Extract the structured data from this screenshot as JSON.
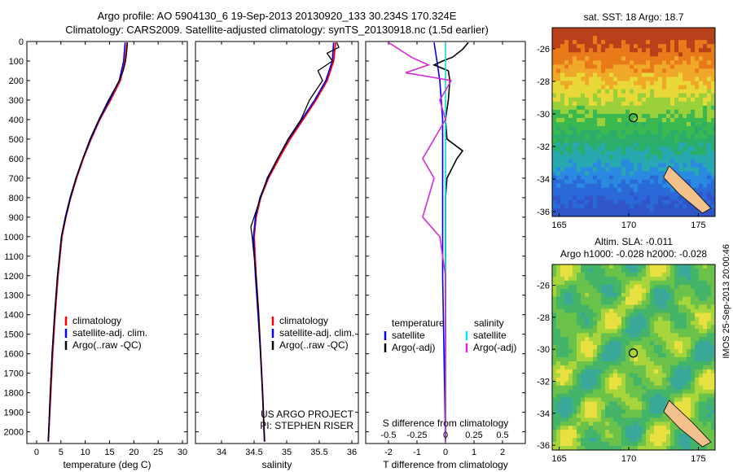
{
  "header": {
    "line1": "Argo profile: AO 5904130_6 19-Sep-2013 20130920_133 30.234S 170.324E",
    "line2": "Climatology: CARS2009. Satellite-adjusted climatology: synTS_20130918.nc (1.5d earlier)"
  },
  "colors": {
    "climatology": "#ff0000",
    "satellite": "#0000ff",
    "argo": "#000000",
    "salinity_sat": "#00e5ff",
    "salinity_argo": "#d42ad4"
  },
  "chart_data": [
    {
      "type": "line",
      "panel": "temperature",
      "xlabel": "temperature (deg C)",
      "xlim": [
        -2,
        31
      ],
      "xticks": [
        0,
        5,
        10,
        15,
        20,
        25,
        30
      ],
      "ylim": [
        2060,
        0
      ],
      "yticks": [
        0,
        100,
        200,
        300,
        400,
        500,
        600,
        700,
        800,
        900,
        1000,
        1100,
        1200,
        1300,
        1400,
        1500,
        1600,
        1700,
        1800,
        1900,
        2000
      ],
      "legend": [
        "climatology",
        "satellite-adj. clim.",
        "Argo(..raw -QC)"
      ],
      "series": [
        {
          "name": "climatology",
          "depth": [
            5,
            100,
            200,
            300,
            400,
            500,
            600,
            700,
            800,
            900,
            1000,
            1200,
            1400,
            1600,
            1800,
            2050
          ],
          "values": [
            18.6,
            18.2,
            17.2,
            15.2,
            13.0,
            11.2,
            9.6,
            8.2,
            7.0,
            6.0,
            5.2,
            4.4,
            3.8,
            3.3,
            2.9,
            2.4
          ]
        },
        {
          "name": "satellite-adj. clim.",
          "depth": [
            5,
            100,
            200,
            300,
            400,
            500,
            600,
            700,
            800,
            900,
            1000,
            1200,
            1400,
            1600,
            1800,
            2050
          ],
          "values": [
            18.2,
            17.9,
            17.0,
            15.0,
            12.9,
            11.1,
            9.5,
            8.1,
            6.9,
            5.9,
            5.1,
            4.3,
            3.7,
            3.2,
            2.8,
            2.4
          ]
        },
        {
          "name": "Argo(..raw -QC)",
          "depth": [
            5,
            60,
            100,
            150,
            200,
            300,
            400,
            500,
            600,
            700,
            800,
            900,
            1000,
            1200,
            1400,
            1600,
            1800,
            2050
          ],
          "values": [
            18.7,
            18.5,
            18.3,
            17.8,
            17.0,
            14.8,
            12.8,
            11.0,
            9.5,
            8.1,
            7.0,
            6.0,
            5.1,
            4.3,
            3.7,
            3.2,
            2.8,
            2.4
          ]
        }
      ]
    },
    {
      "type": "line",
      "panel": "salinity",
      "xlabel": "salinity",
      "xlim": [
        33.6,
        36.1
      ],
      "xticks": [
        34,
        34.5,
        35,
        35.5,
        36
      ],
      "ylim": [
        2060,
        0
      ],
      "legend": [
        "climatology",
        "satellite-adj. clim.",
        "Argo(..raw -QC)"
      ],
      "annotation": [
        "US ARGO PROJECT",
        "PI: STEPHEN RISER"
      ],
      "series": [
        {
          "name": "climatology",
          "depth": [
            5,
            100,
            200,
            300,
            400,
            500,
            600,
            700,
            800,
            900,
            1000,
            1200,
            1400,
            1600,
            1800,
            2050
          ],
          "values": [
            35.75,
            35.72,
            35.62,
            35.45,
            35.25,
            35.05,
            34.88,
            34.72,
            34.6,
            34.53,
            34.5,
            34.53,
            34.57,
            34.6,
            34.63,
            34.66
          ]
        },
        {
          "name": "satellite-adj. clim.",
          "depth": [
            5,
            100,
            200,
            300,
            400,
            500,
            600,
            700,
            800,
            900,
            1000,
            1200,
            1400,
            1600,
            1800,
            2050
          ],
          "values": [
            35.72,
            35.7,
            35.6,
            35.43,
            35.23,
            35.03,
            34.86,
            34.71,
            34.59,
            34.52,
            34.49,
            34.52,
            34.56,
            34.6,
            34.63,
            34.66
          ]
        },
        {
          "name": "Argo(..raw -QC)",
          "depth": [
            5,
            30,
            60,
            100,
            150,
            200,
            300,
            400,
            500,
            600,
            700,
            800,
            900,
            950,
            1000,
            1100,
            1200,
            1400,
            1600,
            1800,
            2050
          ],
          "values": [
            35.77,
            35.8,
            35.62,
            35.7,
            35.48,
            35.55,
            35.35,
            35.22,
            35.02,
            34.86,
            34.7,
            34.6,
            34.5,
            34.45,
            34.47,
            34.5,
            34.53,
            34.57,
            34.6,
            34.63,
            34.66
          ]
        }
      ]
    },
    {
      "type": "line",
      "panel": "difference",
      "xlabel": "T difference from climatology",
      "xlabel_top": "S difference from climatology",
      "xlim": [
        -2.8,
        2.8
      ],
      "xticks": [
        -2,
        -1,
        0,
        1,
        2
      ],
      "sticks": [
        "-0.5",
        "-0.25",
        "0",
        "0.25",
        "0.5"
      ],
      "ylim": [
        2060,
        0
      ],
      "legend_title_t": "temperature",
      "legend_title_s": "salinity",
      "legend": [
        "satellite",
        "Argo(-adj)",
        "satellite",
        "Argo(-adj)"
      ],
      "series": [
        {
          "name": "temperature satellite",
          "depth": [
            5,
            100,
            200,
            400,
            600,
            800,
            1000,
            1200,
            2050
          ],
          "values": [
            -0.4,
            -0.3,
            -0.2,
            -0.1,
            -0.1,
            -0.1,
            -0.1,
            -0.1,
            0.0
          ]
        },
        {
          "name": "temperature Argo(-adj)",
          "depth": [
            5,
            40,
            80,
            100,
            120,
            150,
            200,
            300,
            400,
            500,
            560,
            600,
            700,
            800,
            1000,
            1200,
            2050
          ],
          "values": [
            0.8,
            0.6,
            0.25,
            -0.1,
            -0.4,
            0.1,
            0.15,
            0.1,
            0.0,
            0.05,
            0.6,
            0.4,
            0.05,
            0.0,
            0.0,
            0.0,
            0.0
          ]
        },
        {
          "name": "salinity satellite",
          "depth": [
            5,
            100,
            300,
            600,
            900,
            1200,
            2050
          ],
          "values": [
            0.0,
            0.0,
            0.0,
            0.0,
            0.0,
            0.0,
            0.0
          ]
        },
        {
          "name": "salinity Argo(-adj)",
          "depth": [
            5,
            80,
            120,
            160,
            200,
            300,
            400,
            600,
            700,
            800,
            900,
            1000,
            1200,
            2050
          ],
          "values": [
            -0.5,
            -0.3,
            -0.15,
            -0.35,
            0.05,
            -0.05,
            0.0,
            -0.2,
            -0.1,
            -0.15,
            -0.2,
            -0.05,
            0.0,
            0.0
          ]
        }
      ]
    },
    {
      "type": "heatmap",
      "panel": "sst_map",
      "title": "sat. SST: 18 Argo: 18.7",
      "xticks": [
        165,
        170,
        175
      ],
      "yticks": [
        -26,
        -28,
        -30,
        -32,
        -34,
        -36
      ],
      "xlim": [
        164.5,
        176.2
      ],
      "ylim": [
        -36.3,
        -24.7
      ],
      "marker": {
        "lon": 170.324,
        "lat": -30.234
      }
    },
    {
      "type": "heatmap",
      "panel": "sla_map",
      "title": "Altim. SLA: -0.011",
      "subtitle": "Argo h1000: -0.028 h2000: -0.028",
      "xticks": [
        165,
        170,
        175
      ],
      "yticks": [
        -26,
        -28,
        -30,
        -32,
        -34,
        -36
      ],
      "xlim": [
        164.5,
        176.2
      ],
      "ylim": [
        -36.3,
        -24.7
      ],
      "marker": {
        "lon": 170.324,
        "lat": -30.234
      }
    }
  ],
  "footer": {
    "imos_stamp": "IMOS 25-Sep-2013 20:00:46"
  }
}
